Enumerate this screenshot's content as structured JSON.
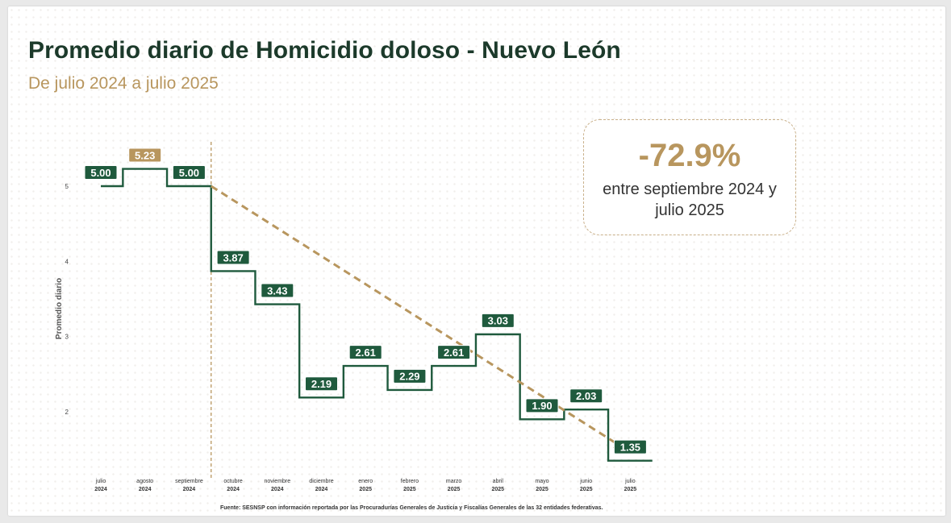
{
  "title": "Promedio diario de Homicidio doloso - Nuevo León",
  "subtitle": "De julio 2024 a julio 2025",
  "callout": {
    "percent": "-72.9%",
    "description": "entre septiembre 2024 y julio 2025"
  },
  "source": "Fuente: SESNSP con información reportada por las Procuradurías Generales de Justicia y Fiscalías Generales de las 32 entidades federativas.",
  "colors": {
    "green": "#1f5a3d",
    "gold": "#b8965e",
    "title": "#1c3a2b"
  },
  "chart_data": {
    "type": "line",
    "step": true,
    "title": "Promedio diario de Homicidio doloso - Nuevo León",
    "ylabel": "Promedio diario",
    "xlabel": "",
    "ylim": [
      1.35,
      5.6
    ],
    "yticks": [
      2,
      3,
      4,
      5
    ],
    "categories": [
      [
        "julio",
        "2024"
      ],
      [
        "agosto",
        "2024"
      ],
      [
        "septiembre",
        "2024"
      ],
      [
        "octubre",
        "2024"
      ],
      [
        "noviembre",
        "2024"
      ],
      [
        "diciembre",
        "2024"
      ],
      [
        "enero",
        "2025"
      ],
      [
        "febrero",
        "2025"
      ],
      [
        "marzo",
        "2025"
      ],
      [
        "abril",
        "2025"
      ],
      [
        "mayo",
        "2025"
      ],
      [
        "junio",
        "2025"
      ],
      [
        "julio",
        "2025"
      ]
    ],
    "values": [
      5.0,
      5.23,
      5.0,
      3.87,
      3.43,
      2.19,
      2.61,
      2.29,
      2.61,
      3.03,
      1.9,
      2.03,
      1.35
    ],
    "labels": [
      "5.00",
      "5.23",
      "5.00",
      "3.87",
      "3.43",
      "2.19",
      "2.61",
      "2.29",
      "2.61",
      "3.03",
      "1.90",
      "2.03",
      "1.35"
    ],
    "highlight_index": 1,
    "trend": {
      "from_index": 2,
      "to_index": 12,
      "style": "dashed-arrow"
    },
    "divider_after_index": 2
  }
}
